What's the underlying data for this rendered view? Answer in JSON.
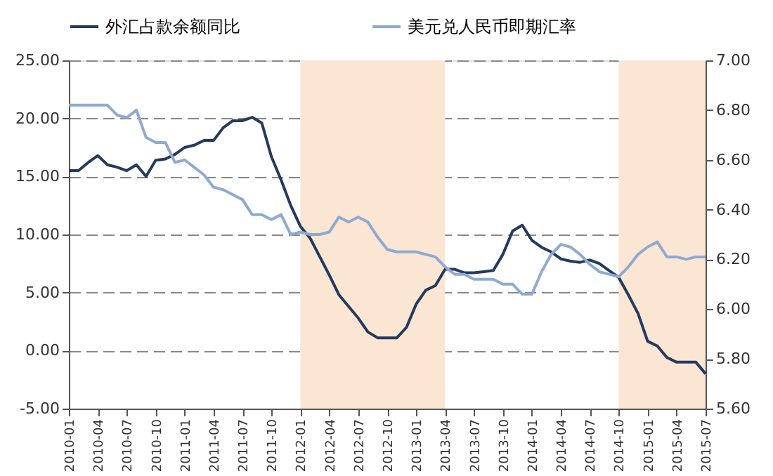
{
  "chart_data": {
    "type": "line",
    "categories": [
      "2010-01",
      null,
      null,
      "2010-04",
      null,
      null,
      "2010-07",
      null,
      null,
      "2010-10",
      null,
      null,
      "2011-01",
      null,
      null,
      "2011-04",
      null,
      null,
      "2011-07",
      null,
      null,
      "2011-10",
      null,
      null,
      "2012-01",
      null,
      null,
      "2012-04",
      null,
      null,
      "2012-07",
      null,
      null,
      "2012-10",
      null,
      null,
      "2013-01",
      null,
      null,
      "2013-04",
      null,
      null,
      "2013-07",
      null,
      null,
      "2013-10",
      null,
      null,
      "2014-01",
      null,
      null,
      "2014-04",
      null,
      null,
      "2014-07",
      null,
      null,
      "2014-10",
      null,
      null,
      "2015-01",
      null,
      null,
      "2015-04",
      null,
      null,
      "2015-07"
    ],
    "series": [
      {
        "name": "外汇占款余额同比",
        "color": "#243a5e",
        "values": [
          15.5,
          15.5,
          16.2,
          16.8,
          16.0,
          15.8,
          15.5,
          16.0,
          15.0,
          16.4,
          16.5,
          16.9,
          17.5,
          17.7,
          18.1,
          18.1,
          19.2,
          19.8,
          19.8,
          20.1,
          19.6,
          16.7,
          14.7,
          12.5,
          10.7,
          9.7,
          8.1,
          6.5,
          4.8,
          3.8,
          2.8,
          1.6,
          1.1,
          1.1,
          1.1,
          2.0,
          4.0,
          5.2,
          5.6,
          7.0,
          7.0,
          6.7,
          6.7,
          6.8,
          6.9,
          8.3,
          10.3,
          10.8,
          9.5,
          8.9,
          8.5,
          7.9,
          7.7,
          7.6,
          7.8,
          7.5,
          6.9,
          6.3,
          4.8,
          3.2,
          0.8,
          0.4,
          -0.6,
          -1.0,
          -1.0,
          -1.0,
          -2.0
        ]
      },
      {
        "name": "美元兑人民币即期汇率",
        "color": "#8eaad0",
        "axis": "y2",
        "values": [
          6.82,
          6.82,
          6.82,
          6.82,
          6.82,
          6.78,
          6.77,
          6.8,
          6.69,
          6.67,
          6.67,
          6.59,
          6.6,
          6.57,
          6.54,
          6.49,
          6.48,
          6.46,
          6.44,
          6.38,
          6.38,
          6.36,
          6.38,
          6.3,
          6.31,
          6.3,
          6.3,
          6.31,
          6.37,
          6.35,
          6.37,
          6.35,
          6.29,
          6.24,
          6.23,
          6.23,
          6.23,
          6.22,
          6.21,
          6.17,
          6.14,
          6.14,
          6.12,
          6.12,
          6.12,
          6.1,
          6.1,
          6.06,
          6.06,
          6.15,
          6.22,
          6.26,
          6.25,
          6.22,
          6.18,
          6.15,
          6.14,
          6.13,
          6.17,
          6.22,
          6.25,
          6.27,
          6.21,
          6.21,
          6.2,
          6.21,
          6.21
        ]
      }
    ],
    "ylim": [
      -5,
      25
    ],
    "yticks": [
      {
        "value": -5,
        "label": "-5.00"
      },
      {
        "value": 0,
        "label": "0.00"
      },
      {
        "value": 5,
        "label": "5.00"
      },
      {
        "value": 10,
        "label": "10.00"
      },
      {
        "value": 15,
        "label": "15.00"
      },
      {
        "value": 20,
        "label": "20.00"
      },
      {
        "value": 25,
        "label": "25.00"
      }
    ],
    "y2lim": [
      5.6,
      7.0
    ],
    "y2ticks": [
      {
        "value": 5.6,
        "label": "5.60"
      },
      {
        "value": 5.8,
        "label": "5.80"
      },
      {
        "value": 6.0,
        "label": "6.00"
      },
      {
        "value": 6.2,
        "label": "6.20"
      },
      {
        "value": 6.4,
        "label": "6.40"
      },
      {
        "value": 6.6,
        "label": "6.60"
      },
      {
        "value": 6.8,
        "label": "6.80"
      },
      {
        "value": 7.0,
        "label": "7.00"
      }
    ],
    "bands": [
      {
        "axis": "x",
        "from": "2012-01",
        "to": "2013-04",
        "color": "#fbe5d3"
      },
      {
        "axis": "x",
        "from": "2014-10",
        "to": "2015-07",
        "color": "#fbe5d3"
      }
    ],
    "grid": "y",
    "legend": "top",
    "line_style": "solid",
    "marker": "none"
  }
}
